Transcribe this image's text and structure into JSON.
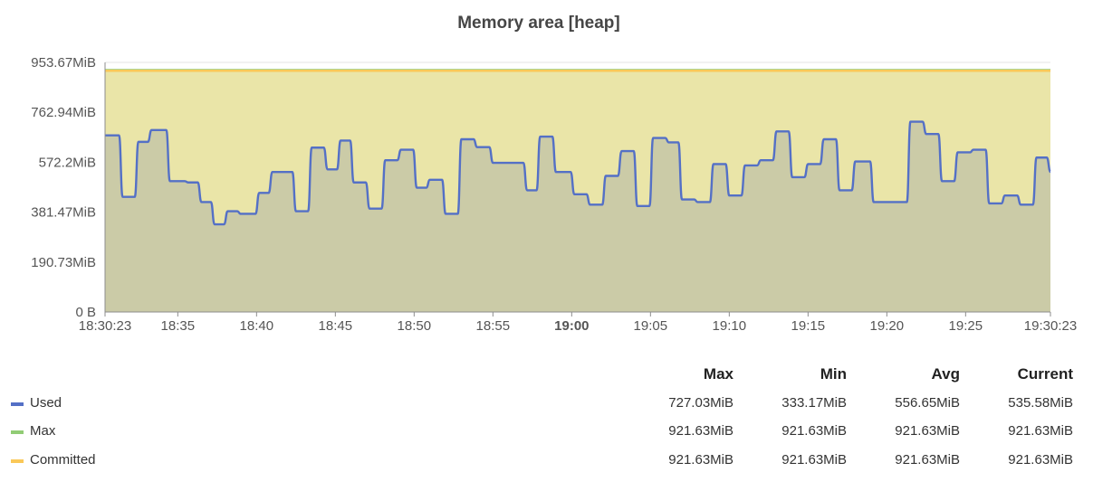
{
  "chart_data": {
    "type": "area",
    "title": "Memory area [heap]",
    "y_unit": "MiB",
    "ylim": [
      0,
      953.67
    ],
    "y_ticks": [
      "0 B",
      "190.73MiB",
      "381.47MiB",
      "572.2MiB",
      "762.94MiB",
      "953.67MiB"
    ],
    "y_tick_values": [
      0,
      190.73,
      381.47,
      572.2,
      762.94,
      953.67
    ],
    "xlim": [
      "18:30:23",
      "19:30:23"
    ],
    "x_ticks": [
      {
        "label": "18:30:23",
        "t": "18:30:23"
      },
      {
        "label": "18:35",
        "t": "18:35:00"
      },
      {
        "label": "18:40",
        "t": "18:40:00"
      },
      {
        "label": "18:45",
        "t": "18:45:00"
      },
      {
        "label": "18:50",
        "t": "18:50:00"
      },
      {
        "label": "18:55",
        "t": "18:55:00"
      },
      {
        "label": "19:00",
        "t": "19:00:00",
        "bold": true
      },
      {
        "label": "19:05",
        "t": "19:05:00"
      },
      {
        "label": "19:10",
        "t": "19:10:00"
      },
      {
        "label": "19:15",
        "t": "19:15:00"
      },
      {
        "label": "19:20",
        "t": "19:20:00"
      },
      {
        "label": "19:25",
        "t": "19:25:00"
      },
      {
        "label": "19:30:23",
        "t": "19:30:23"
      }
    ],
    "grid": true,
    "legend_position": "bottom",
    "series": [
      {
        "name": "Used",
        "color": "#5470c6",
        "fill": "#c9c9a7",
        "values": [
          [
            "18:30:23",
            675
          ],
          [
            "18:31:00",
            675
          ],
          [
            "18:31:30",
            440
          ],
          [
            "18:32:00",
            440
          ],
          [
            "18:32:30",
            650
          ],
          [
            "18:33:00",
            650
          ],
          [
            "18:33:20",
            695
          ],
          [
            "18:34:00",
            695
          ],
          [
            "18:34:30",
            500
          ],
          [
            "18:35:40",
            495
          ],
          [
            "18:36:30",
            420
          ],
          [
            "18:37:20",
            335
          ],
          [
            "18:38:10",
            385
          ],
          [
            "18:39:00",
            375
          ],
          [
            "18:40:10",
            455
          ],
          [
            "18:41:00",
            535
          ],
          [
            "18:42:30",
            385
          ],
          [
            "18:43:30",
            628
          ],
          [
            "18:44:30",
            545
          ],
          [
            "18:45:20",
            655
          ],
          [
            "18:46:10",
            495
          ],
          [
            "18:47:10",
            395
          ],
          [
            "18:48:10",
            580
          ],
          [
            "18:49:10",
            620
          ],
          [
            "18:50:10",
            475
          ],
          [
            "18:51:00",
            505
          ],
          [
            "18:52:00",
            375
          ],
          [
            "18:53:00",
            660
          ],
          [
            "18:54:00",
            630
          ],
          [
            "18:55:00",
            570
          ],
          [
            "18:56:00",
            570
          ],
          [
            "18:57:10",
            465
          ],
          [
            "18:58:00",
            670
          ],
          [
            "18:59:00",
            535
          ],
          [
            "19:00:10",
            450
          ],
          [
            "19:01:10",
            410
          ],
          [
            "19:02:10",
            520
          ],
          [
            "19:03:10",
            615
          ],
          [
            "19:04:10",
            405
          ],
          [
            "19:05:10",
            665
          ],
          [
            "19:06:10",
            648
          ],
          [
            "19:07:00",
            430
          ],
          [
            "19:08:00",
            420
          ],
          [
            "19:09:00",
            565
          ],
          [
            "19:10:00",
            445
          ],
          [
            "19:11:00",
            560
          ],
          [
            "19:12:00",
            580
          ],
          [
            "19:13:00",
            690
          ],
          [
            "19:14:00",
            515
          ],
          [
            "19:15:00",
            565
          ],
          [
            "19:16:00",
            660
          ],
          [
            "19:17:00",
            465
          ],
          [
            "19:18:00",
            575
          ],
          [
            "19:19:10",
            420
          ],
          [
            "19:20:30",
            420
          ],
          [
            "19:21:30",
            727
          ],
          [
            "19:22:30",
            680
          ],
          [
            "19:23:30",
            500
          ],
          [
            "19:24:30",
            610
          ],
          [
            "19:25:30",
            620
          ],
          [
            "19:26:30",
            415
          ],
          [
            "19:27:30",
            445
          ],
          [
            "19:28:30",
            410
          ],
          [
            "19:29:30",
            590
          ],
          [
            "19:30:23",
            535.58
          ]
        ]
      },
      {
        "name": "Max",
        "color": "#91cc75",
        "values": [
          [
            "18:30:23",
            921.63
          ],
          [
            "19:30:23",
            921.63
          ]
        ]
      },
      {
        "name": "Committed",
        "color": "#fac858",
        "fill": "#eae5a8",
        "values": [
          [
            "18:30:23",
            921.63
          ],
          [
            "19:30:23",
            921.63
          ]
        ]
      }
    ]
  },
  "legend": {
    "headers": [
      "Max",
      "Min",
      "Avg",
      "Current"
    ],
    "rows": [
      {
        "name": "Used",
        "color": "#5470c6",
        "max": "727.03MiB",
        "min": "333.17MiB",
        "avg": "556.65MiB",
        "current": "535.58MiB"
      },
      {
        "name": "Max",
        "color": "#91cc75",
        "max": "921.63MiB",
        "min": "921.63MiB",
        "avg": "921.63MiB",
        "current": "921.63MiB"
      },
      {
        "name": "Committed",
        "color": "#fac858",
        "max": "921.63MiB",
        "min": "921.63MiB",
        "avg": "921.63MiB",
        "current": "921.63MiB"
      }
    ]
  }
}
